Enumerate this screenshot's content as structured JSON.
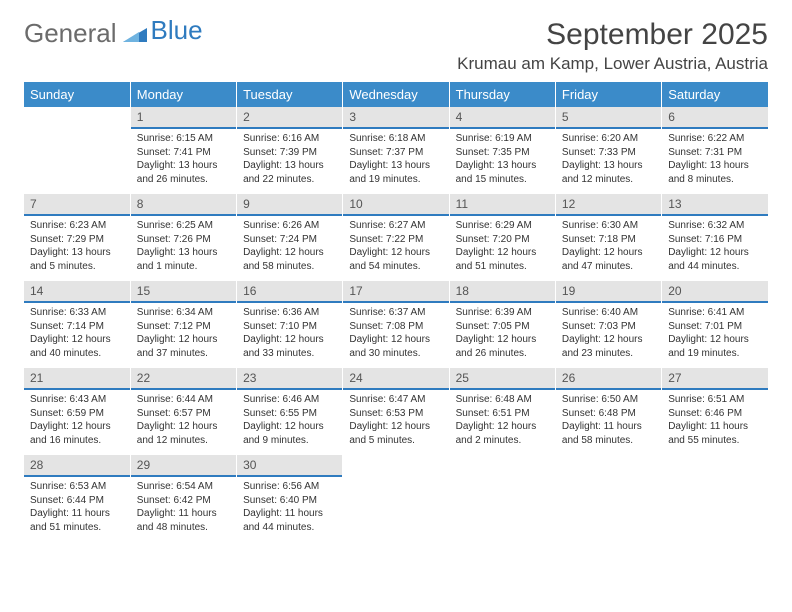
{
  "logo": {
    "text1": "General",
    "text2": "Blue"
  },
  "title": "September 2025",
  "subtitle": "Krumau am Kamp, Lower Austria, Austria",
  "headers": [
    "Sunday",
    "Monday",
    "Tuesday",
    "Wednesday",
    "Thursday",
    "Friday",
    "Saturday"
  ],
  "colors": {
    "header_bg": "#3b8bc9",
    "accent_line": "#2f7bbf",
    "daynum_bg": "#e4e4e4",
    "page_bg": "#ffffff",
    "text": "#333333"
  },
  "weeks": [
    [
      {
        "num": "",
        "lines": []
      },
      {
        "num": "1",
        "lines": [
          "Sunrise: 6:15 AM",
          "Sunset: 7:41 PM",
          "Daylight: 13 hours and 26 minutes."
        ]
      },
      {
        "num": "2",
        "lines": [
          "Sunrise: 6:16 AM",
          "Sunset: 7:39 PM",
          "Daylight: 13 hours and 22 minutes."
        ]
      },
      {
        "num": "3",
        "lines": [
          "Sunrise: 6:18 AM",
          "Sunset: 7:37 PM",
          "Daylight: 13 hours and 19 minutes."
        ]
      },
      {
        "num": "4",
        "lines": [
          "Sunrise: 6:19 AM",
          "Sunset: 7:35 PM",
          "Daylight: 13 hours and 15 minutes."
        ]
      },
      {
        "num": "5",
        "lines": [
          "Sunrise: 6:20 AM",
          "Sunset: 7:33 PM",
          "Daylight: 13 hours and 12 minutes."
        ]
      },
      {
        "num": "6",
        "lines": [
          "Sunrise: 6:22 AM",
          "Sunset: 7:31 PM",
          "Daylight: 13 hours and 8 minutes."
        ]
      }
    ],
    [
      {
        "num": "7",
        "lines": [
          "Sunrise: 6:23 AM",
          "Sunset: 7:29 PM",
          "Daylight: 13 hours and 5 minutes."
        ]
      },
      {
        "num": "8",
        "lines": [
          "Sunrise: 6:25 AM",
          "Sunset: 7:26 PM",
          "Daylight: 13 hours and 1 minute."
        ]
      },
      {
        "num": "9",
        "lines": [
          "Sunrise: 6:26 AM",
          "Sunset: 7:24 PM",
          "Daylight: 12 hours and 58 minutes."
        ]
      },
      {
        "num": "10",
        "lines": [
          "Sunrise: 6:27 AM",
          "Sunset: 7:22 PM",
          "Daylight: 12 hours and 54 minutes."
        ]
      },
      {
        "num": "11",
        "lines": [
          "Sunrise: 6:29 AM",
          "Sunset: 7:20 PM",
          "Daylight: 12 hours and 51 minutes."
        ]
      },
      {
        "num": "12",
        "lines": [
          "Sunrise: 6:30 AM",
          "Sunset: 7:18 PM",
          "Daylight: 12 hours and 47 minutes."
        ]
      },
      {
        "num": "13",
        "lines": [
          "Sunrise: 6:32 AM",
          "Sunset: 7:16 PM",
          "Daylight: 12 hours and 44 minutes."
        ]
      }
    ],
    [
      {
        "num": "14",
        "lines": [
          "Sunrise: 6:33 AM",
          "Sunset: 7:14 PM",
          "Daylight: 12 hours and 40 minutes."
        ]
      },
      {
        "num": "15",
        "lines": [
          "Sunrise: 6:34 AM",
          "Sunset: 7:12 PM",
          "Daylight: 12 hours and 37 minutes."
        ]
      },
      {
        "num": "16",
        "lines": [
          "Sunrise: 6:36 AM",
          "Sunset: 7:10 PM",
          "Daylight: 12 hours and 33 minutes."
        ]
      },
      {
        "num": "17",
        "lines": [
          "Sunrise: 6:37 AM",
          "Sunset: 7:08 PM",
          "Daylight: 12 hours and 30 minutes."
        ]
      },
      {
        "num": "18",
        "lines": [
          "Sunrise: 6:39 AM",
          "Sunset: 7:05 PM",
          "Daylight: 12 hours and 26 minutes."
        ]
      },
      {
        "num": "19",
        "lines": [
          "Sunrise: 6:40 AM",
          "Sunset: 7:03 PM",
          "Daylight: 12 hours and 23 minutes."
        ]
      },
      {
        "num": "20",
        "lines": [
          "Sunrise: 6:41 AM",
          "Sunset: 7:01 PM",
          "Daylight: 12 hours and 19 minutes."
        ]
      }
    ],
    [
      {
        "num": "21",
        "lines": [
          "Sunrise: 6:43 AM",
          "Sunset: 6:59 PM",
          "Daylight: 12 hours and 16 minutes."
        ]
      },
      {
        "num": "22",
        "lines": [
          "Sunrise: 6:44 AM",
          "Sunset: 6:57 PM",
          "Daylight: 12 hours and 12 minutes."
        ]
      },
      {
        "num": "23",
        "lines": [
          "Sunrise: 6:46 AM",
          "Sunset: 6:55 PM",
          "Daylight: 12 hours and 9 minutes."
        ]
      },
      {
        "num": "24",
        "lines": [
          "Sunrise: 6:47 AM",
          "Sunset: 6:53 PM",
          "Daylight: 12 hours and 5 minutes."
        ]
      },
      {
        "num": "25",
        "lines": [
          "Sunrise: 6:48 AM",
          "Sunset: 6:51 PM",
          "Daylight: 12 hours and 2 minutes."
        ]
      },
      {
        "num": "26",
        "lines": [
          "Sunrise: 6:50 AM",
          "Sunset: 6:48 PM",
          "Daylight: 11 hours and 58 minutes."
        ]
      },
      {
        "num": "27",
        "lines": [
          "Sunrise: 6:51 AM",
          "Sunset: 6:46 PM",
          "Daylight: 11 hours and 55 minutes."
        ]
      }
    ],
    [
      {
        "num": "28",
        "lines": [
          "Sunrise: 6:53 AM",
          "Sunset: 6:44 PM",
          "Daylight: 11 hours and 51 minutes."
        ]
      },
      {
        "num": "29",
        "lines": [
          "Sunrise: 6:54 AM",
          "Sunset: 6:42 PM",
          "Daylight: 11 hours and 48 minutes."
        ]
      },
      {
        "num": "30",
        "lines": [
          "Sunrise: 6:56 AM",
          "Sunset: 6:40 PM",
          "Daylight: 11 hours and 44 minutes."
        ]
      },
      {
        "num": "",
        "lines": []
      },
      {
        "num": "",
        "lines": []
      },
      {
        "num": "",
        "lines": []
      },
      {
        "num": "",
        "lines": []
      }
    ]
  ]
}
